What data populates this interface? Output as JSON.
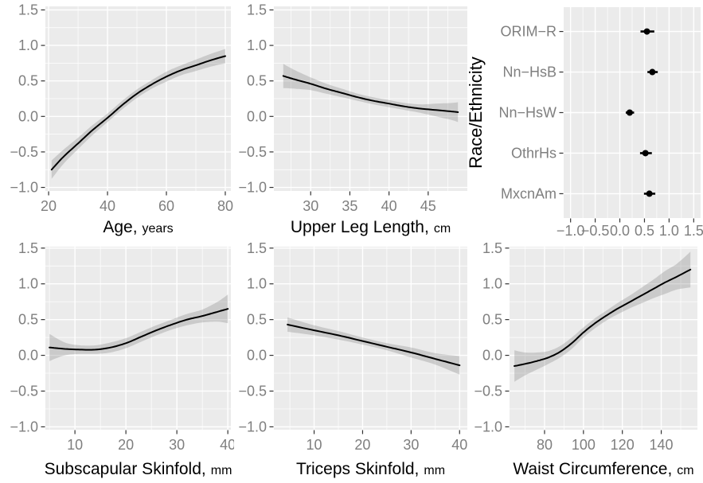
{
  "figure_title": "",
  "style": {
    "panel_background": "#EBEBEB",
    "grid_color": "#FFFFFF",
    "line_color": "#000000",
    "ribbon_color": "rgba(125,125,125,0.30)",
    "tick_label_color": "#7F7F7F",
    "tick_mark_color": "#333333",
    "axis_title_color": "#000000"
  },
  "chart_data": [
    {
      "id": "age",
      "type": "line",
      "kind": "smooth",
      "xlabel_main": "Age,",
      "xlabel_unit": "years",
      "xlim": [
        18.9,
        81.9
      ],
      "ylim": [
        -1.05,
        1.55
      ],
      "xticks": [
        20,
        40,
        60,
        80
      ],
      "xtick_labels": [
        "20",
        "40",
        "60",
        "80"
      ],
      "xminor": [
        30,
        50,
        70
      ],
      "yticks": [
        -1.0,
        -0.5,
        0.0,
        0.5,
        1.0,
        1.5
      ],
      "ytick_labels": [
        "−1.0",
        "−0.5",
        "0.0",
        "0.5",
        "1.0",
        "1.5"
      ],
      "yminor": [
        -0.75,
        -0.25,
        0.25,
        0.75,
        1.25
      ],
      "x": [
        21,
        25,
        30,
        35,
        40,
        45,
        50,
        55,
        60,
        65,
        70,
        75,
        80
      ],
      "y": [
        -0.75,
        -0.57,
        -0.38,
        -0.19,
        -0.02,
        0.16,
        0.32,
        0.45,
        0.56,
        0.65,
        0.72,
        0.79,
        0.85
      ],
      "lo": [
        -0.88,
        -0.67,
        -0.46,
        -0.26,
        -0.08,
        0.1,
        0.26,
        0.39,
        0.49,
        0.58,
        0.64,
        0.7,
        0.75
      ],
      "hi": [
        -0.62,
        -0.47,
        -0.3,
        -0.12,
        0.04,
        0.22,
        0.38,
        0.51,
        0.63,
        0.72,
        0.8,
        0.88,
        0.95
      ]
    },
    {
      "id": "upper-leg-length",
      "type": "line",
      "kind": "smooth",
      "xlabel_main": "Upper Leg Length,",
      "xlabel_unit": "cm",
      "xlim": [
        25.3,
        50.0
      ],
      "ylim": [
        -1.05,
        1.55
      ],
      "xticks": [
        30,
        35,
        40,
        45
      ],
      "xtick_labels": [
        "30",
        "35",
        "40",
        "45"
      ],
      "xminor": [
        27.5,
        32.5,
        37.5,
        42.5,
        47.5
      ],
      "yticks": [
        -1.0,
        -0.5,
        0.0,
        0.5,
        1.0,
        1.5
      ],
      "ytick_labels": [
        "−1.0",
        "−0.5",
        "0.0",
        "0.5",
        "1.0",
        "1.5"
      ],
      "yminor": [
        -0.75,
        -0.25,
        0.25,
        0.75,
        1.25
      ],
      "x": [
        26.5,
        28,
        30,
        32,
        34,
        36,
        38,
        40,
        42,
        44,
        46,
        48,
        48.8
      ],
      "y": [
        0.57,
        0.52,
        0.46,
        0.39,
        0.33,
        0.27,
        0.22,
        0.18,
        0.14,
        0.11,
        0.09,
        0.07,
        0.06
      ],
      "lo": [
        0.4,
        0.39,
        0.37,
        0.32,
        0.27,
        0.22,
        0.17,
        0.13,
        0.09,
        0.05,
        0.0,
        -0.05,
        -0.08
      ],
      "hi": [
        0.74,
        0.65,
        0.55,
        0.46,
        0.39,
        0.32,
        0.27,
        0.23,
        0.19,
        0.17,
        0.18,
        0.19,
        0.2
      ]
    },
    {
      "id": "race-ethnicity",
      "type": "scatter",
      "kind": "pointrange",
      "ylabel": "Race/Ethnicity",
      "xlim": [
        -1.14,
        1.64
      ],
      "xticks": [
        -1.0,
        -0.5,
        0.0,
        0.5,
        1.0,
        1.5
      ],
      "xtick_labels": [
        "−1.0",
        "−0.5",
        "0.0",
        "0.5",
        "1.0",
        "1.5"
      ],
      "xminor": [
        -0.75,
        -0.25,
        0.25,
        0.75,
        1.25
      ],
      "categories": [
        "ORIM−R",
        "Nn−HsB",
        "Nn−HsW",
        "OthrHs",
        "MxcnAm"
      ],
      "estimates": [
        0.55,
        0.66,
        0.2,
        0.52,
        0.6
      ],
      "lo": [
        0.42,
        0.56,
        0.12,
        0.41,
        0.49
      ],
      "hi": [
        0.7,
        0.77,
        0.29,
        0.65,
        0.72
      ]
    },
    {
      "id": "subscapular-skinfold",
      "type": "line",
      "kind": "smooth",
      "xlabel_main": "Subscapular Skinfold,",
      "xlabel_unit": "mm",
      "xlim": [
        4.2,
        40.6
      ],
      "ylim": [
        -1.04,
        1.52
      ],
      "xticks": [
        10,
        20,
        30,
        40
      ],
      "xtick_labels": [
        "10",
        "20",
        "30",
        "40"
      ],
      "xminor": [
        5,
        15,
        25,
        35
      ],
      "yticks": [
        -1.0,
        -0.5,
        0.0,
        0.5,
        1.0,
        1.5
      ],
      "ytick_labels": [
        "−1.0",
        "−0.5",
        "0.0",
        "0.5",
        "1.0",
        "1.5"
      ],
      "yminor": [
        -0.75,
        -0.25,
        0.25,
        0.75,
        1.25
      ],
      "x": [
        5,
        8,
        11,
        14,
        17,
        20,
        23,
        26,
        29,
        32,
        35,
        38,
        40
      ],
      "y": [
        0.11,
        0.09,
        0.08,
        0.08,
        0.11,
        0.17,
        0.26,
        0.35,
        0.43,
        0.5,
        0.55,
        0.61,
        0.65
      ],
      "lo": [
        -0.08,
        0.0,
        0.02,
        0.02,
        0.04,
        0.1,
        0.19,
        0.28,
        0.36,
        0.42,
        0.46,
        0.47,
        0.45
      ],
      "hi": [
        0.3,
        0.18,
        0.14,
        0.14,
        0.18,
        0.24,
        0.33,
        0.42,
        0.5,
        0.58,
        0.64,
        0.75,
        0.85
      ]
    },
    {
      "id": "triceps-skinfold",
      "type": "line",
      "kind": "smooth",
      "xlabel_main": "Triceps Skinfold,",
      "xlabel_unit": "mm",
      "xlim": [
        1.7,
        41.6
      ],
      "ylim": [
        -1.04,
        1.52
      ],
      "xticks": [
        10,
        20,
        30,
        40
      ],
      "xtick_labels": [
        "10",
        "20",
        "30",
        "40"
      ],
      "xminor": [
        5,
        15,
        25,
        35
      ],
      "yticks": [
        -1.0,
        -0.5,
        0.0,
        0.5,
        1.0,
        1.5
      ],
      "ytick_labels": [
        "−1.0",
        "−0.5",
        "0.0",
        "0.5",
        "1.0",
        "1.5"
      ],
      "yminor": [
        -0.75,
        -0.25,
        0.25,
        0.75,
        1.25
      ],
      "x": [
        4.5,
        10,
        15,
        20,
        25,
        30,
        35,
        40
      ],
      "y": [
        0.43,
        0.35,
        0.28,
        0.2,
        0.12,
        0.04,
        -0.05,
        -0.14
      ],
      "lo": [
        0.33,
        0.28,
        0.22,
        0.15,
        0.07,
        -0.03,
        -0.13,
        -0.27
      ],
      "hi": [
        0.53,
        0.42,
        0.34,
        0.25,
        0.17,
        0.11,
        0.03,
        -0.01
      ]
    },
    {
      "id": "waist-circumference",
      "type": "line",
      "kind": "smooth",
      "xlabel_main": "Waist Circumference,",
      "xlabel_unit": "cm",
      "xlim": [
        62.0,
        158.6
      ],
      "ylim": [
        -1.04,
        1.52
      ],
      "xticks": [
        80,
        100,
        120,
        140
      ],
      "xtick_labels": [
        "80",
        "100",
        "120",
        "140"
      ],
      "xminor": [
        70,
        90,
        110,
        130,
        150
      ],
      "yticks": [
        -1.0,
        -0.5,
        0.0,
        0.5,
        1.0,
        1.5
      ],
      "ytick_labels": [
        "−1.0",
        "−0.5",
        "0.0",
        "0.5",
        "1.0",
        "1.5"
      ],
      "yminor": [
        -0.75,
        -0.25,
        0.25,
        0.75,
        1.25
      ],
      "x": [
        64.5,
        70,
        76,
        82,
        88,
        94,
        100,
        106,
        112,
        118,
        124,
        130,
        136,
        142,
        148,
        155
      ],
      "y": [
        -0.15,
        -0.12,
        -0.08,
        -0.03,
        0.05,
        0.17,
        0.32,
        0.45,
        0.56,
        0.66,
        0.75,
        0.84,
        0.93,
        1.02,
        1.1,
        1.2
      ],
      "lo": [
        -0.37,
        -0.28,
        -0.2,
        -0.12,
        -0.03,
        0.09,
        0.25,
        0.38,
        0.49,
        0.58,
        0.66,
        0.73,
        0.8,
        0.86,
        0.92,
        0.95
      ],
      "hi": [
        0.07,
        0.04,
        0.04,
        0.06,
        0.13,
        0.25,
        0.39,
        0.52,
        0.63,
        0.74,
        0.84,
        0.95,
        1.06,
        1.18,
        1.28,
        1.45
      ]
    }
  ]
}
